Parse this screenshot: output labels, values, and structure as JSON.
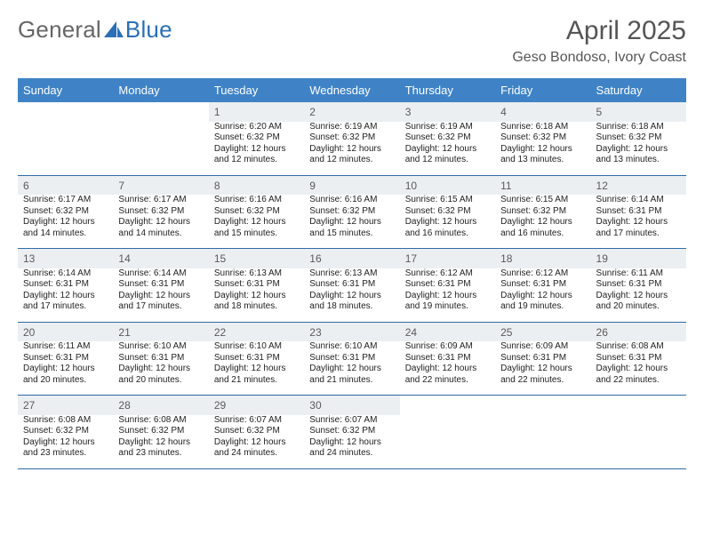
{
  "logo": {
    "text1": "General",
    "text2": "Blue"
  },
  "title": "April 2025",
  "location": "Geso Bondoso, Ivory Coast",
  "colors": {
    "header_bg": "#3f83c6",
    "header_text": "#ffffff",
    "rule": "#2e6ba8",
    "daynum_bg": "#eceff1",
    "text": "#222222",
    "logo_blue": "#2a6fb5",
    "logo_gray": "#666666"
  },
  "weekdays": [
    "Sunday",
    "Monday",
    "Tuesday",
    "Wednesday",
    "Thursday",
    "Friday",
    "Saturday"
  ],
  "firstWeekday": 2,
  "daysInMonth": 30,
  "days": {
    "1": {
      "sunrise": "6:20 AM",
      "sunset": "6:32 PM",
      "daylight": "12 hours and 12 minutes."
    },
    "2": {
      "sunrise": "6:19 AM",
      "sunset": "6:32 PM",
      "daylight": "12 hours and 12 minutes."
    },
    "3": {
      "sunrise": "6:19 AM",
      "sunset": "6:32 PM",
      "daylight": "12 hours and 12 minutes."
    },
    "4": {
      "sunrise": "6:18 AM",
      "sunset": "6:32 PM",
      "daylight": "12 hours and 13 minutes."
    },
    "5": {
      "sunrise": "6:18 AM",
      "sunset": "6:32 PM",
      "daylight": "12 hours and 13 minutes."
    },
    "6": {
      "sunrise": "6:17 AM",
      "sunset": "6:32 PM",
      "daylight": "12 hours and 14 minutes."
    },
    "7": {
      "sunrise": "6:17 AM",
      "sunset": "6:32 PM",
      "daylight": "12 hours and 14 minutes."
    },
    "8": {
      "sunrise": "6:16 AM",
      "sunset": "6:32 PM",
      "daylight": "12 hours and 15 minutes."
    },
    "9": {
      "sunrise": "6:16 AM",
      "sunset": "6:32 PM",
      "daylight": "12 hours and 15 minutes."
    },
    "10": {
      "sunrise": "6:15 AM",
      "sunset": "6:32 PM",
      "daylight": "12 hours and 16 minutes."
    },
    "11": {
      "sunrise": "6:15 AM",
      "sunset": "6:32 PM",
      "daylight": "12 hours and 16 minutes."
    },
    "12": {
      "sunrise": "6:14 AM",
      "sunset": "6:31 PM",
      "daylight": "12 hours and 17 minutes."
    },
    "13": {
      "sunrise": "6:14 AM",
      "sunset": "6:31 PM",
      "daylight": "12 hours and 17 minutes."
    },
    "14": {
      "sunrise": "6:14 AM",
      "sunset": "6:31 PM",
      "daylight": "12 hours and 17 minutes."
    },
    "15": {
      "sunrise": "6:13 AM",
      "sunset": "6:31 PM",
      "daylight": "12 hours and 18 minutes."
    },
    "16": {
      "sunrise": "6:13 AM",
      "sunset": "6:31 PM",
      "daylight": "12 hours and 18 minutes."
    },
    "17": {
      "sunrise": "6:12 AM",
      "sunset": "6:31 PM",
      "daylight": "12 hours and 19 minutes."
    },
    "18": {
      "sunrise": "6:12 AM",
      "sunset": "6:31 PM",
      "daylight": "12 hours and 19 minutes."
    },
    "19": {
      "sunrise": "6:11 AM",
      "sunset": "6:31 PM",
      "daylight": "12 hours and 20 minutes."
    },
    "20": {
      "sunrise": "6:11 AM",
      "sunset": "6:31 PM",
      "daylight": "12 hours and 20 minutes."
    },
    "21": {
      "sunrise": "6:10 AM",
      "sunset": "6:31 PM",
      "daylight": "12 hours and 20 minutes."
    },
    "22": {
      "sunrise": "6:10 AM",
      "sunset": "6:31 PM",
      "daylight": "12 hours and 21 minutes."
    },
    "23": {
      "sunrise": "6:10 AM",
      "sunset": "6:31 PM",
      "daylight": "12 hours and 21 minutes."
    },
    "24": {
      "sunrise": "6:09 AM",
      "sunset": "6:31 PM",
      "daylight": "12 hours and 22 minutes."
    },
    "25": {
      "sunrise": "6:09 AM",
      "sunset": "6:31 PM",
      "daylight": "12 hours and 22 minutes."
    },
    "26": {
      "sunrise": "6:08 AM",
      "sunset": "6:31 PM",
      "daylight": "12 hours and 22 minutes."
    },
    "27": {
      "sunrise": "6:08 AM",
      "sunset": "6:32 PM",
      "daylight": "12 hours and 23 minutes."
    },
    "28": {
      "sunrise": "6:08 AM",
      "sunset": "6:32 PM",
      "daylight": "12 hours and 23 minutes."
    },
    "29": {
      "sunrise": "6:07 AM",
      "sunset": "6:32 PM",
      "daylight": "12 hours and 24 minutes."
    },
    "30": {
      "sunrise": "6:07 AM",
      "sunset": "6:32 PM",
      "daylight": "12 hours and 24 minutes."
    }
  },
  "labels": {
    "sunrise": "Sunrise: ",
    "sunset": "Sunset: ",
    "daylight": "Daylight: "
  }
}
